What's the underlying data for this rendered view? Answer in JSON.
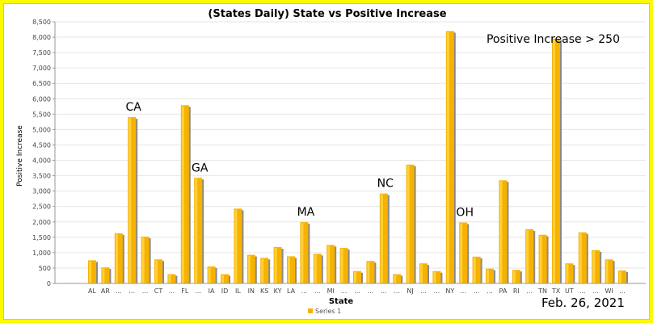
{
  "colors": {
    "bar": "#f7b200",
    "bar_highlight": "#ffd84a",
    "bar_shadow": "#8a8a8a",
    "background": "#fbfb00"
  },
  "date_stamp": "Feb. 26, 2021",
  "chart_data": {
    "type": "bar",
    "title": "(States Daily) State vs Positive Increase",
    "xlabel": "State",
    "ylabel": "Positive Increase",
    "ylim": [
      0,
      8500
    ],
    "yticks": [
      "0",
      "500",
      "1,000",
      "1,500",
      "2,000",
      "2,500",
      "3,000",
      "3,500",
      "4,000",
      "4,500",
      "5,000",
      "5,500",
      "6,000",
      "6,500",
      "7,000",
      "7,500",
      "8,000",
      "8,500"
    ],
    "grid": true,
    "legend_position": "bottom",
    "categories": [
      "AL",
      "AR",
      "...",
      "...",
      "...",
      "CT",
      "...",
      "FL",
      "...",
      "IA",
      "ID",
      "IL",
      "IN",
      "KS",
      "KY",
      "LA",
      "...",
      "...",
      "MI",
      "...",
      "...",
      "...",
      "...",
      "...",
      "NJ",
      "...",
      "...",
      "NY",
      "...",
      "...",
      "...",
      "PA",
      "RI",
      "...",
      "TN",
      "TX",
      "UT",
      "...",
      "...",
      "WI",
      "..."
    ],
    "series": [
      {
        "name": "Series 1",
        "values": [
          750,
          520,
          1630,
          5400,
          1520,
          780,
          300,
          5790,
          3430,
          550,
          300,
          2430,
          930,
          830,
          1180,
          880,
          1990,
          960,
          1250,
          1150,
          400,
          730,
          2920,
          300,
          3860,
          650,
          400,
          8200,
          1980,
          870,
          480,
          3350,
          440,
          1760,
          1580,
          7950,
          650,
          1660,
          1080,
          780,
          420
        ]
      }
    ],
    "annotations": [
      {
        "text": "CA",
        "category_index": 3
      },
      {
        "text": "GA",
        "category_index": 8
      },
      {
        "text": "MA",
        "category_index": 16
      },
      {
        "text": "NC",
        "category_index": 22
      },
      {
        "text": "OH",
        "category_index": 28
      },
      {
        "text": "Positive Increase > 250",
        "position": "top-right"
      }
    ]
  }
}
